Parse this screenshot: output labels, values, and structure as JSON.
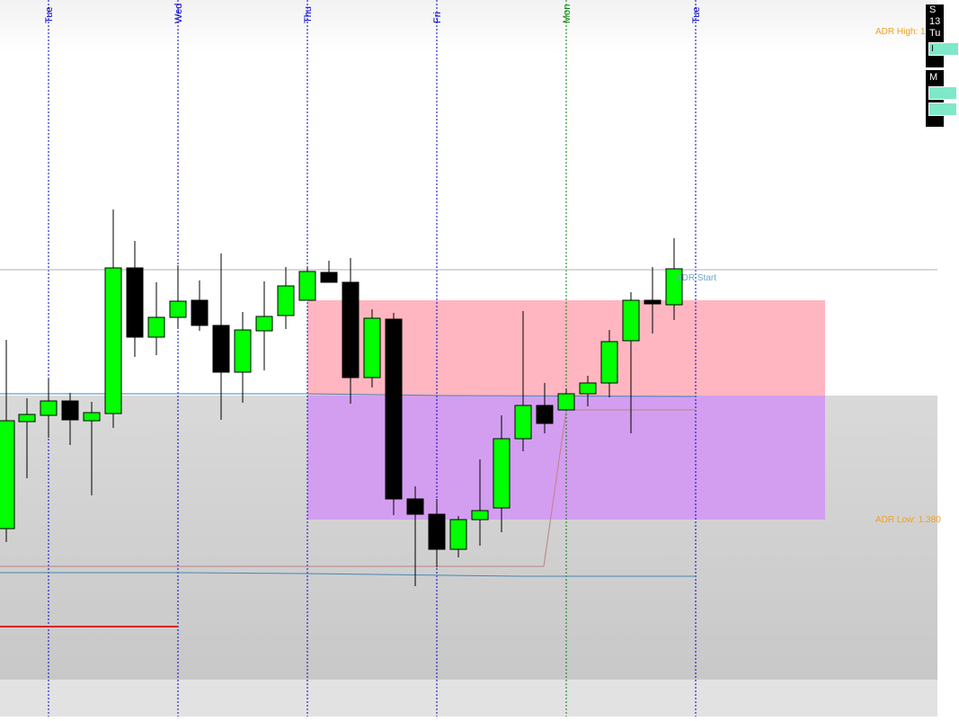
{
  "day_labels": [
    "Tue",
    "Wed",
    "Thu",
    "Fri",
    "Mon",
    "Tue"
  ],
  "adr_high_label": "ADR High: 1.",
  "adr_low_label": "ADR Low: 1.380",
  "adr_start_label": "ADR Start",
  "side_panel": {
    "top_lines": [
      "S",
      "13",
      "Tu"
    ],
    "top_button": "I",
    "bottom_line": "M"
  },
  "colors": {
    "bull": "#00ff00",
    "bear": "#000000",
    "adr_high_zone": "#ffb6c1",
    "adr_low_zone": "#d39ef0",
    "day_separator": "#0000cc",
    "week_separator": "#008000",
    "adr_text": "#f0a020"
  }
}
